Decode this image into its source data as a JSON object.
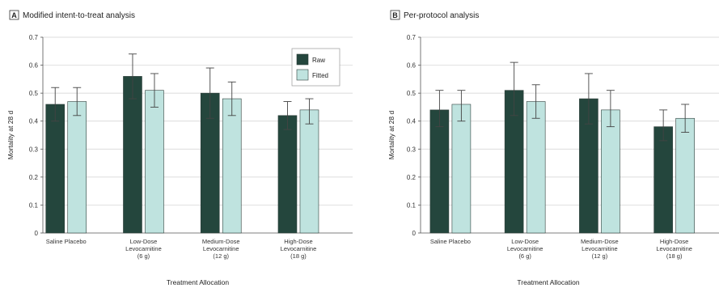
{
  "colors": {
    "raw": "#24463d",
    "fitted": "#bfe3df",
    "bar_stroke": "#2f3f3b"
  },
  "legend": [
    {
      "key": "raw",
      "label": "Raw"
    },
    {
      "key": "fitted",
      "label": "Fitted"
    }
  ],
  "chart_data": [
    {
      "type": "bar",
      "panel_letter": "A",
      "title": "Modified intent-to-treat analysis",
      "xlabel": "Treatment Allocation",
      "ylabel": "Mortality at 28 d",
      "ylim": [
        0,
        0.7
      ],
      "yticks": [
        "0",
        "0.1",
        "0.2",
        "0.3",
        "0.4",
        "0.5",
        "0.6",
        "0.7"
      ],
      "grid": true,
      "legend_position": "top-right",
      "categories": [
        [
          "Saline Placebo"
        ],
        [
          "Low-Dose",
          "Levocarnitine",
          "(6 g)"
        ],
        [
          "Medium-Dose",
          "Levocarnitine",
          "(12 g)"
        ],
        [
          "High-Dose",
          "Levocarnitine",
          "(18 g)"
        ]
      ],
      "series": [
        {
          "name": "Raw",
          "values": [
            0.46,
            0.56,
            0.5,
            0.42
          ],
          "lower": [
            0.4,
            0.48,
            0.41,
            0.37
          ],
          "upper": [
            0.52,
            0.64,
            0.59,
            0.47
          ]
        },
        {
          "name": "Fitted",
          "values": [
            0.47,
            0.51,
            0.48,
            0.44
          ],
          "lower": [
            0.42,
            0.45,
            0.42,
            0.39
          ],
          "upper": [
            0.52,
            0.57,
            0.54,
            0.48
          ]
        }
      ]
    },
    {
      "type": "bar",
      "panel_letter": "B",
      "title": "Per-protocol analysis",
      "xlabel": "Treatment Allocation",
      "ylabel": "Mortality at 28 d",
      "ylim": [
        0,
        0.7
      ],
      "yticks": [
        "0",
        "0.1",
        "0.2",
        "0.3",
        "0.4",
        "0.5",
        "0.6",
        "0.7"
      ],
      "grid": true,
      "categories": [
        [
          "Saline Placebo"
        ],
        [
          "Low-Dose",
          "Levocarnitine",
          "(6 g)"
        ],
        [
          "Medium-Dose",
          "Levocarnitine",
          "(12 g)"
        ],
        [
          "High-Dose",
          "Levocarnitine",
          "(18 g)"
        ]
      ],
      "series": [
        {
          "name": "Raw",
          "values": [
            0.44,
            0.51,
            0.48,
            0.38
          ],
          "lower": [
            0.38,
            0.42,
            0.39,
            0.33
          ],
          "upper": [
            0.51,
            0.61,
            0.57,
            0.44
          ]
        },
        {
          "name": "Fitted",
          "values": [
            0.46,
            0.47,
            0.44,
            0.41
          ],
          "lower": [
            0.4,
            0.41,
            0.38,
            0.36
          ],
          "upper": [
            0.51,
            0.53,
            0.51,
            0.46
          ]
        }
      ]
    }
  ]
}
